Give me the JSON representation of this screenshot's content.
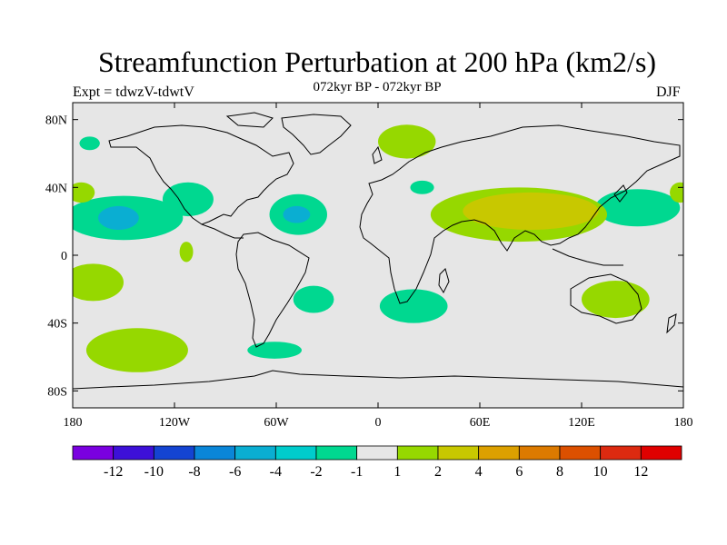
{
  "title": "Streamfunction Perturbation at 200 hPa (km2/s)",
  "subtitle": "072kyr BP - 072kyr BP",
  "experiment": "Expt = tdwzV-tdwtV",
  "season": "DJF",
  "map": {
    "projection": "cylindrical equidistant",
    "background_color": "#e6e6e6",
    "lon_range": [
      -180,
      180
    ],
    "lat_range": [
      -90,
      90
    ],
    "y_ticks": [
      {
        "lat": 80,
        "label": "80N"
      },
      {
        "lat": 40,
        "label": "40N"
      },
      {
        "lat": 0,
        "label": "0"
      },
      {
        "lat": -40,
        "label": "40S"
      },
      {
        "lat": -80,
        "label": "80S"
      }
    ],
    "x_ticks": [
      {
        "lon": -180,
        "label": "180"
      },
      {
        "lon": -120,
        "label": "120W"
      },
      {
        "lon": -60,
        "label": "60W"
      },
      {
        "lon": 0,
        "label": "0"
      },
      {
        "lon": 60,
        "label": "60E"
      },
      {
        "lon": 120,
        "label": "120E"
      },
      {
        "lon": 180,
        "label": "180"
      }
    ]
  },
  "colorbar": {
    "colors": [
      "#7a00e0",
      "#3d10d8",
      "#1444d2",
      "#0a86d8",
      "#0aaed2",
      "#00cccc",
      "#00d890",
      "#e6e6e6",
      "#96d800",
      "#c8c800",
      "#dca000",
      "#dc7a00",
      "#dc5000",
      "#dc2a10",
      "#e00000"
    ],
    "labels": [
      "-12",
      "-10",
      "-8",
      "-6",
      "-4",
      "-2",
      "-1",
      "1",
      "2",
      "4",
      "6",
      "8",
      "10",
      "12"
    ]
  },
  "anomalies": [
    {
      "region": "north-atlantic-pacific-band",
      "sign": "negative",
      "level": -2,
      "lon": -150,
      "lat": 22,
      "rx": 35,
      "ry": 13
    },
    {
      "region": "central-pacific-core",
      "sign": "negative",
      "level": -4,
      "lon": -153,
      "lat": 22,
      "rx": 12,
      "ry": 7
    },
    {
      "region": "north-atlantic",
      "sign": "negative",
      "level": -2,
      "lon": -47,
      "lat": 24,
      "rx": 17,
      "ry": 12
    },
    {
      "region": "north-atlantic-core",
      "sign": "negative",
      "level": -4,
      "lon": -48,
      "lat": 24,
      "rx": 8,
      "ry": 5
    },
    {
      "region": "eastern-pacific-north",
      "sign": "negative",
      "level": -2,
      "lon": -112,
      "lat": 33,
      "rx": 15,
      "ry": 10
    },
    {
      "region": "greenland-arctic",
      "sign": "negative",
      "level": -2,
      "lon": -170,
      "lat": 66,
      "rx": 6,
      "ry": 4
    },
    {
      "region": "mediterranean",
      "sign": "negative",
      "level": -2,
      "lon": 26,
      "lat": 40,
      "rx": 7,
      "ry": 4
    },
    {
      "region": "west-pacific",
      "sign": "negative",
      "level": -2,
      "lon": 153,
      "lat": 28,
      "rx": 25,
      "ry": 11
    },
    {
      "region": "south-atlantic",
      "sign": "negative",
      "level": -2,
      "lon": -38,
      "lat": -26,
      "rx": 12,
      "ry": 8
    },
    {
      "region": "south-africa",
      "sign": "negative",
      "level": -2,
      "lon": 21,
      "lat": -30,
      "rx": 20,
      "ry": 10
    },
    {
      "region": "drake-passage",
      "sign": "negative",
      "level": -2,
      "lon": -61,
      "lat": -56,
      "rx": 16,
      "ry": 5
    },
    {
      "region": "scandinavia",
      "sign": "positive",
      "level": 1,
      "lon": 17,
      "lat": 67,
      "rx": 17,
      "ry": 10
    },
    {
      "region": "asia-band",
      "sign": "positive",
      "level": 1,
      "lon": 83,
      "lat": 24,
      "rx": 52,
      "ry": 16
    },
    {
      "region": "asia-core",
      "sign": "positive",
      "level": 2,
      "lon": 90,
      "lat": 26,
      "rx": 40,
      "ry": 11
    },
    {
      "region": "south-pacific",
      "sign": "positive",
      "level": 1,
      "lon": -142,
      "lat": -56,
      "rx": 30,
      "ry": 13
    },
    {
      "region": "australia",
      "sign": "positive",
      "level": 1,
      "lon": 140,
      "lat": -26,
      "rx": 20,
      "ry": 11
    },
    {
      "region": "north-pacific-west",
      "sign": "positive",
      "level": 1,
      "lon": -175,
      "lat": 37,
      "rx": 8,
      "ry": 6
    },
    {
      "region": "far-east-west",
      "sign": "positive",
      "level": 1,
      "lon": 178,
      "lat": 37,
      "rx": 6,
      "ry": 6
    },
    {
      "region": "central-pacific-south",
      "sign": "positive",
      "level": 1,
      "lon": -168,
      "lat": -16,
      "rx": 18,
      "ry": 11
    },
    {
      "region": "east-pacific-equator",
      "sign": "positive",
      "level": 1,
      "lon": -113,
      "lat": 2,
      "rx": 4,
      "ry": 6
    }
  ]
}
